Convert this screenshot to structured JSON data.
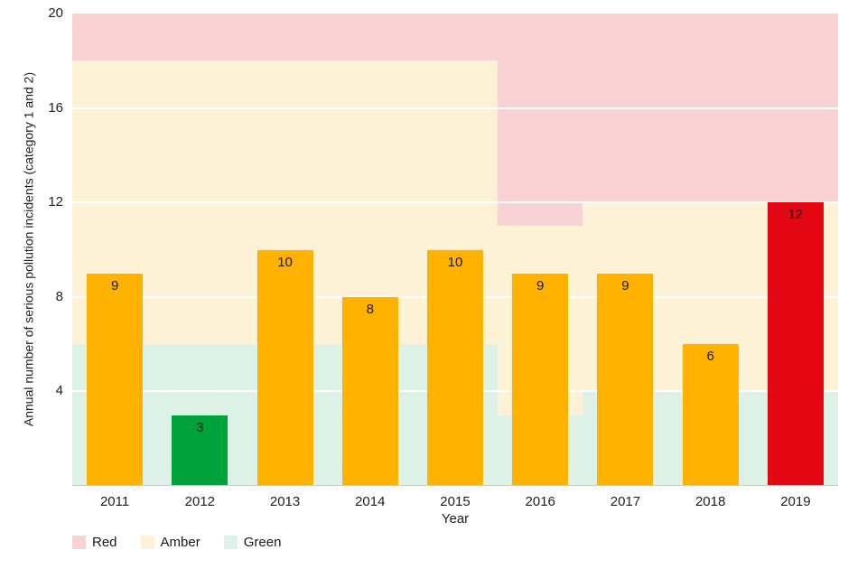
{
  "chart_data": {
    "type": "bar",
    "xlabel": "Year",
    "ylabel": "Annual number of serious pollution incidents (category 1 and 2)",
    "ylim": [
      0,
      20
    ],
    "yticks": [
      20,
      16,
      12,
      8,
      4
    ],
    "gridlines": [
      4,
      8,
      12,
      16
    ],
    "grid": "horizontal-white",
    "legend_position": "bottom-left",
    "categories": [
      "2011",
      "2012",
      "2013",
      "2014",
      "2015",
      "2016",
      "2017",
      "2018",
      "2019"
    ],
    "values": [
      9,
      3,
      10,
      8,
      10,
      9,
      9,
      6,
      12
    ],
    "bar_status": [
      "amber",
      "green",
      "amber",
      "amber",
      "amber",
      "amber",
      "amber",
      "amber",
      "red"
    ],
    "zones": [
      {
        "from_year": "2011",
        "to_year": "2015",
        "green_max": 6,
        "amber_max": 18
      },
      {
        "from_year": "2016",
        "to_year": "2016",
        "green_max": 3,
        "amber_max": 11
      },
      {
        "from_year": "2017",
        "to_year": "2019",
        "green_max": 4,
        "amber_max": 12
      }
    ],
    "legend": [
      {
        "label": "Red",
        "color": "#F8D1D4"
      },
      {
        "label": "Amber",
        "color": "#FDF2D5"
      },
      {
        "label": "Green",
        "color": "#DEF1E6"
      }
    ],
    "colors": {
      "bar_amber": "#FFB300",
      "bar_green": "#00A33B",
      "bar_red": "#E30613",
      "zone_red": "#F8D1D4",
      "zone_amber": "#FDF2D5",
      "zone_green": "#DEF1E6"
    }
  }
}
